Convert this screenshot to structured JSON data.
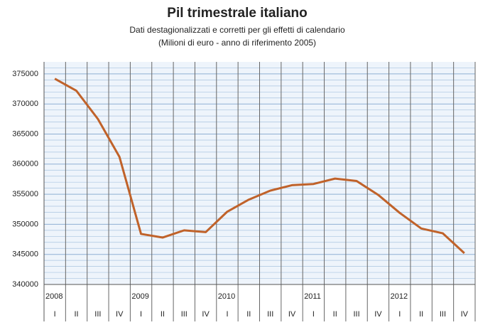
{
  "chart_data": {
    "type": "line",
    "title": "Pil trimestrale italiano",
    "subtitle": [
      "Dati destagionalizzati e corretti per gli effetti di calendario",
      "(Milioni di euro - anno di riferimento 2005)"
    ],
    "categories": [
      "I",
      "II",
      "III",
      "IV",
      "I",
      "II",
      "III",
      "IV",
      "I",
      "II",
      "III",
      "IV",
      "I",
      "II",
      "III",
      "IV",
      "I",
      "II",
      "III",
      "IV"
    ],
    "years": [
      "2008",
      "2009",
      "2010",
      "2011",
      "2012"
    ],
    "series": [
      {
        "name": "Pil",
        "color": "#c0622a",
        "values": [
          374200,
          372200,
          367500,
          361200,
          348400,
          347800,
          349000,
          348700,
          352100,
          354100,
          355600,
          356500,
          356700,
          357600,
          357200,
          354900,
          351900,
          349300,
          348500,
          345200
        ]
      }
    ],
    "ylim": [
      340000,
      377000
    ],
    "yticks": [
      340000,
      345000,
      350000,
      355000,
      360000,
      365000,
      370000,
      375000
    ],
    "grid": true
  }
}
